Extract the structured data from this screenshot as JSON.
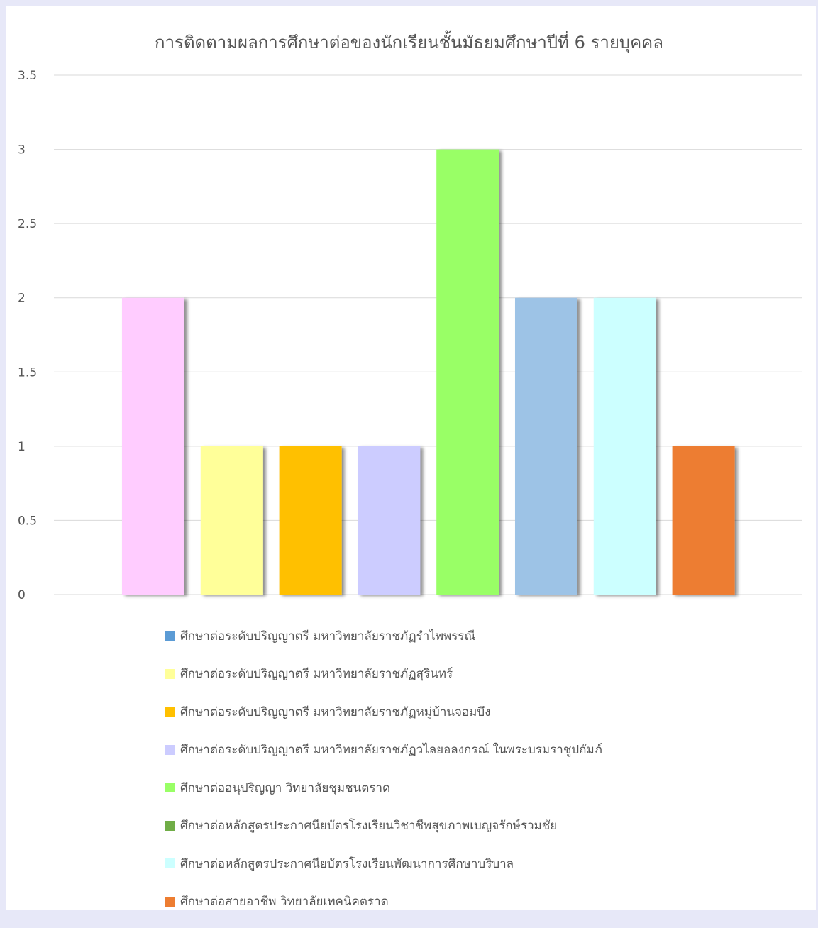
{
  "chart_data": {
    "type": "bar",
    "title": "การติดตามผลการศึกษาต่อของนักเรียนชั้นมัธยมศึกษาปีที่ 6 รายบุคคล",
    "ylim": [
      0,
      3.5
    ],
    "yticks": [
      "0",
      "0.5",
      "1",
      "1.5",
      "2",
      "2.5",
      "3",
      "3.5"
    ],
    "ytick_values": [
      0,
      0.5,
      1,
      1.5,
      2,
      2.5,
      3,
      3.5
    ],
    "grid": true,
    "legend_position": "bottom",
    "bars": [
      {
        "value": 2,
        "color": "#ffccff"
      },
      {
        "value": 1,
        "color": "#ffff99"
      },
      {
        "value": 1,
        "color": "#ffc000"
      },
      {
        "value": 1,
        "color": "#ccccff"
      },
      {
        "value": 3,
        "color": "#99ff66"
      },
      {
        "value": 2,
        "color": "#9dc3e6"
      },
      {
        "value": 2,
        "color": "#ccffff"
      },
      {
        "value": 1,
        "color": "#ed7d31"
      }
    ],
    "legend": [
      {
        "label": "ศึกษาต่อระดับปริญญาตรี มหาวิทยาลัยราชภัฏรำไพพรรณี",
        "color": "#5b9bd5"
      },
      {
        "label": "ศึกษาต่อระดับปริญญาตรี มหาวิทยาลัยราชภัฏสุรินทร์",
        "color": "#ffff99"
      },
      {
        "label": "ศึกษาต่อระดับปริญญาตรี มหาวิทยาลัยราชภัฏหมู่บ้านจอมบึง",
        "color": "#ffc000"
      },
      {
        "label": "ศึกษาต่อระดับปริญญาตรี มหาวิทยาลัยราชภัฏวไลยอลงกรณ์ ในพระบรมราชูปถัมภ์",
        "color": "#ccccff"
      },
      {
        "label": "ศึกษาต่ออนุปริญญา วิทยาลัยชุมชนตราด",
        "color": "#99ff66"
      },
      {
        "label": "ศึกษาต่อหลักสูตรประกาศนียบัตรโรงเรียนวิชาชีพสุขภาพเบญจรักษ์รวมชัย",
        "color": "#70ad47"
      },
      {
        "label": "ศึกษาต่อหลักสูตรประกาศนียบัตรโรงเรียนพัฒนาการศึกษาบริบาล",
        "color": "#ccffff"
      },
      {
        "label": "ศึกษาต่อสายอาชีพ วิทยาลัยเทคนิคตราด",
        "color": "#ed7d31"
      }
    ]
  }
}
